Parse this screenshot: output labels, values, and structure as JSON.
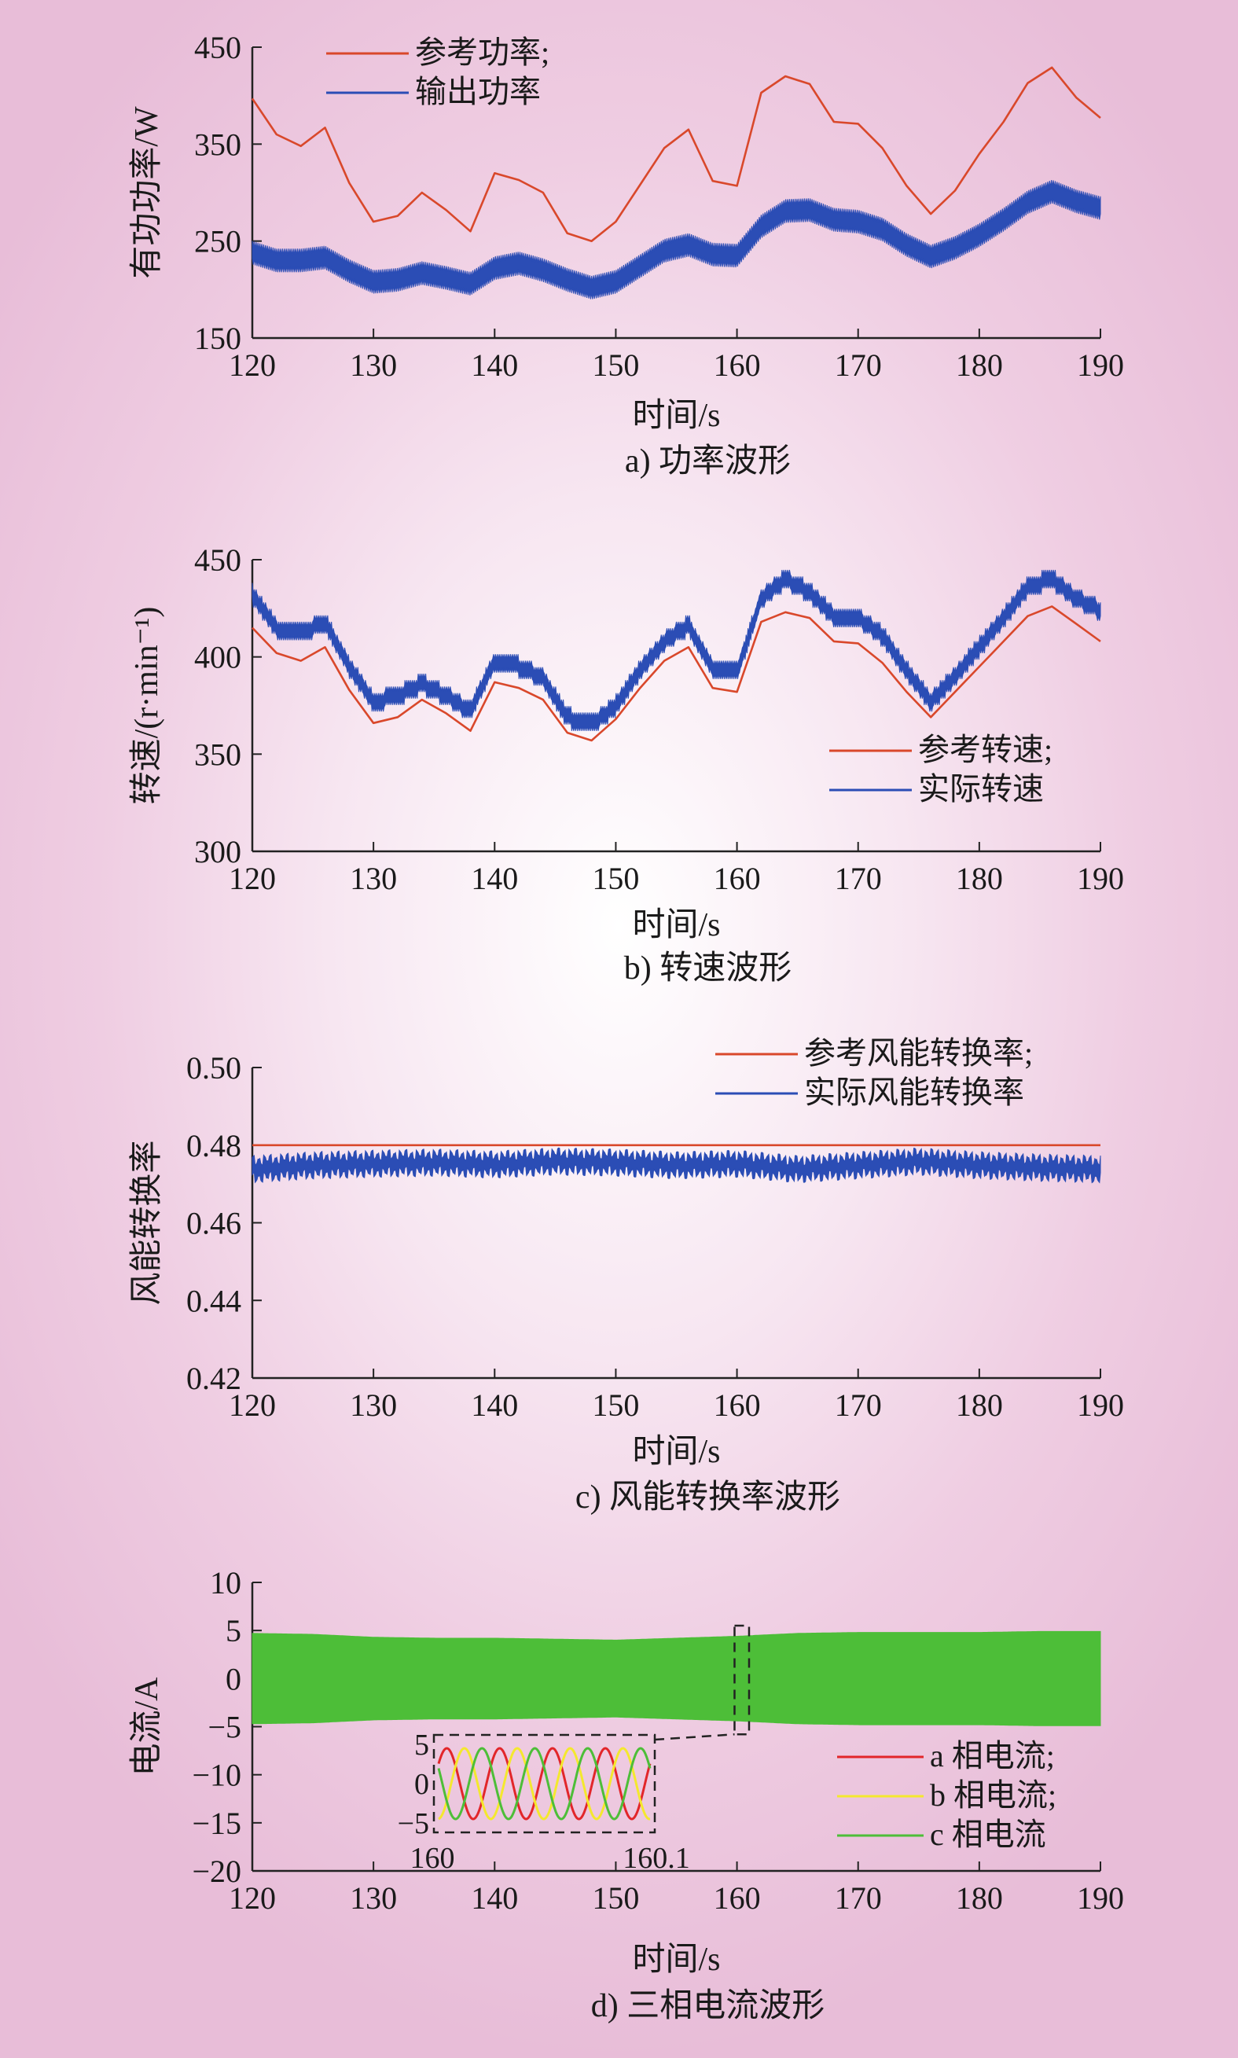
{
  "chart_data": [
    {
      "id": "a",
      "type": "line",
      "caption": "a) 功率波形",
      "xlabel": "时间/s",
      "ylabel": "有功功率/W",
      "xlim": [
        120,
        190
      ],
      "ylim": [
        150,
        450
      ],
      "xticks": [
        "120",
        "130",
        "140",
        "150",
        "160",
        "170",
        "180",
        "190"
      ],
      "yticks": [
        "150",
        "250",
        "350",
        "450"
      ],
      "legend_position": "top-left",
      "series": [
        {
          "name": "参考功率;",
          "color": "#d9482b",
          "style": "thin",
          "x": [
            120,
            122,
            124,
            126,
            128,
            130,
            132,
            134,
            136,
            138,
            140,
            142,
            144,
            146,
            148,
            150,
            152,
            154,
            156,
            158,
            160,
            162,
            164,
            166,
            168,
            170,
            172,
            174,
            176,
            178,
            180,
            182,
            184,
            186,
            188,
            190
          ],
          "y": [
            397,
            360,
            348,
            367,
            310,
            270,
            276,
            300,
            282,
            260,
            320,
            313,
            300,
            258,
            250,
            270,
            308,
            346,
            365,
            312,
            307,
            403,
            420,
            412,
            373,
            371,
            346,
            307,
            278,
            302,
            340,
            373,
            413,
            429,
            398,
            377
          ]
        },
        {
          "name": "输出功率",
          "color": "#2b4db5",
          "style": "band",
          "band_halfwidth": 9,
          "x": [
            120,
            122,
            124,
            126,
            128,
            130,
            132,
            134,
            136,
            138,
            140,
            142,
            144,
            146,
            148,
            150,
            152,
            154,
            156,
            158,
            160,
            162,
            164,
            166,
            168,
            170,
            172,
            174,
            176,
            178,
            180,
            182,
            184,
            186,
            188,
            190
          ],
          "y": [
            238,
            230,
            230,
            233,
            219,
            208,
            210,
            217,
            212,
            206,
            222,
            227,
            220,
            210,
            202,
            208,
            224,
            240,
            246,
            236,
            235,
            265,
            281,
            282,
            272,
            270,
            262,
            246,
            234,
            243,
            256,
            272,
            290,
            301,
            291,
            284
          ]
        }
      ]
    },
    {
      "id": "b",
      "type": "line",
      "caption": "b) 转速波形",
      "xlabel": "时间/s",
      "ylabel": "转速/(r·min⁻¹)",
      "xlim": [
        120,
        190
      ],
      "ylim": [
        300,
        450
      ],
      "xticks": [
        "120",
        "130",
        "140",
        "150",
        "160",
        "170",
        "180",
        "190"
      ],
      "yticks": [
        "300",
        "350",
        "400",
        "450"
      ],
      "legend_position": "bottom-right",
      "series": [
        {
          "name": "参考转速;",
          "color": "#d9482b",
          "style": "thin",
          "x": [
            120,
            122,
            124,
            126,
            128,
            130,
            132,
            134,
            136,
            138,
            140,
            142,
            144,
            146,
            148,
            150,
            152,
            154,
            156,
            158,
            160,
            162,
            164,
            166,
            168,
            170,
            172,
            174,
            176,
            178,
            180,
            182,
            184,
            186,
            188,
            190
          ],
          "y": [
            415,
            402,
            398,
            405,
            383,
            366,
            369,
            378,
            371,
            362,
            387,
            384,
            378,
            361,
            357,
            368,
            384,
            398,
            405,
            384,
            382,
            418,
            423,
            420,
            408,
            407,
            397,
            382,
            369,
            382,
            395,
            408,
            421,
            426,
            417,
            408
          ]
        },
        {
          "name": "实际转速",
          "color": "#2b4db5",
          "style": "band",
          "band_halfwidth": 3.5,
          "step": true,
          "x": [
            120,
            122,
            124,
            126,
            128,
            130,
            132,
            134,
            136,
            138,
            140,
            142,
            144,
            146,
            148,
            150,
            152,
            154,
            156,
            158,
            160,
            162,
            164,
            166,
            168,
            170,
            172,
            174,
            176,
            178,
            180,
            182,
            184,
            186,
            188,
            190
          ],
          "y": [
            432,
            415,
            412,
            418,
            395,
            377,
            380,
            386,
            380,
            372,
            398,
            395,
            389,
            369,
            365,
            375,
            393,
            408,
            416,
            394,
            392,
            430,
            440,
            433,
            421,
            420,
            411,
            393,
            377,
            390,
            405,
            420,
            436,
            440,
            430,
            424
          ]
        }
      ]
    },
    {
      "id": "c",
      "type": "line",
      "caption": "c) 风能转换率波形",
      "xlabel": "时间/s",
      "ylabel": "风能转换率",
      "xlim": [
        120,
        190
      ],
      "ylim": [
        0.42,
        0.5
      ],
      "xticks": [
        "120",
        "130",
        "140",
        "150",
        "160",
        "170",
        "180",
        "190"
      ],
      "yticks": [
        "0.42",
        "0.44",
        "0.46",
        "0.48",
        "0.50"
      ],
      "legend_position": "top-right",
      "series": [
        {
          "name": "参考风能转换率;",
          "color": "#d9482b",
          "style": "thin",
          "x": [
            120,
            190
          ],
          "y": [
            0.48,
            0.48
          ]
        },
        {
          "name": "实际风能转换率",
          "color": "#2b4db5",
          "style": "band",
          "band_halfwidth": 0.0022,
          "x": [
            120,
            125,
            130,
            135,
            140,
            145,
            150,
            155,
            160,
            165,
            170,
            175,
            180,
            185,
            190
          ],
          "y": [
            0.4738,
            0.4748,
            0.4752,
            0.4755,
            0.475,
            0.4758,
            0.4755,
            0.4748,
            0.4752,
            0.4738,
            0.4748,
            0.4758,
            0.4748,
            0.4742,
            0.4738
          ]
        }
      ]
    },
    {
      "id": "d",
      "type": "line",
      "caption": "d) 三相电流波形",
      "xlabel": "时间/s",
      "ylabel": "电流/A",
      "xlim": [
        120,
        190
      ],
      "ylim": [
        -20,
        10
      ],
      "xticks": [
        "120",
        "130",
        "140",
        "150",
        "160",
        "170",
        "180",
        "190"
      ],
      "yticks": [
        "−20",
        "−15",
        "−10",
        "−5",
        "0",
        "5",
        "10"
      ],
      "legend_position": "bottom-right",
      "envelope": {
        "x": [
          120,
          125,
          130,
          135,
          140,
          145,
          150,
          155,
          160,
          165,
          170,
          175,
          180,
          185,
          190
        ],
        "amplitude": [
          4.7,
          4.6,
          4.3,
          4.2,
          4.2,
          4.1,
          4.0,
          4.2,
          4.4,
          4.7,
          4.8,
          4.8,
          4.8,
          4.9,
          4.9
        ],
        "color": "#4dbe38"
      },
      "series": [
        {
          "name": "a 相电流;",
          "color": "#e2262a"
        },
        {
          "name": "b 相电流;",
          "color": "#f4e82e"
        },
        {
          "name": "c 相电流",
          "color": "#4dbe38"
        }
      ],
      "inset": {
        "xlim": [
          160,
          160.1
        ],
        "ylim": [
          -5,
          5
        ],
        "xticks": [
          "160",
          "160.1"
        ],
        "yticks": [
          "−5",
          "0",
          "5"
        ],
        "cycles": 4,
        "amplitude": 4.5,
        "zoom_range": [
          159.8,
          161.0
        ]
      }
    }
  ]
}
